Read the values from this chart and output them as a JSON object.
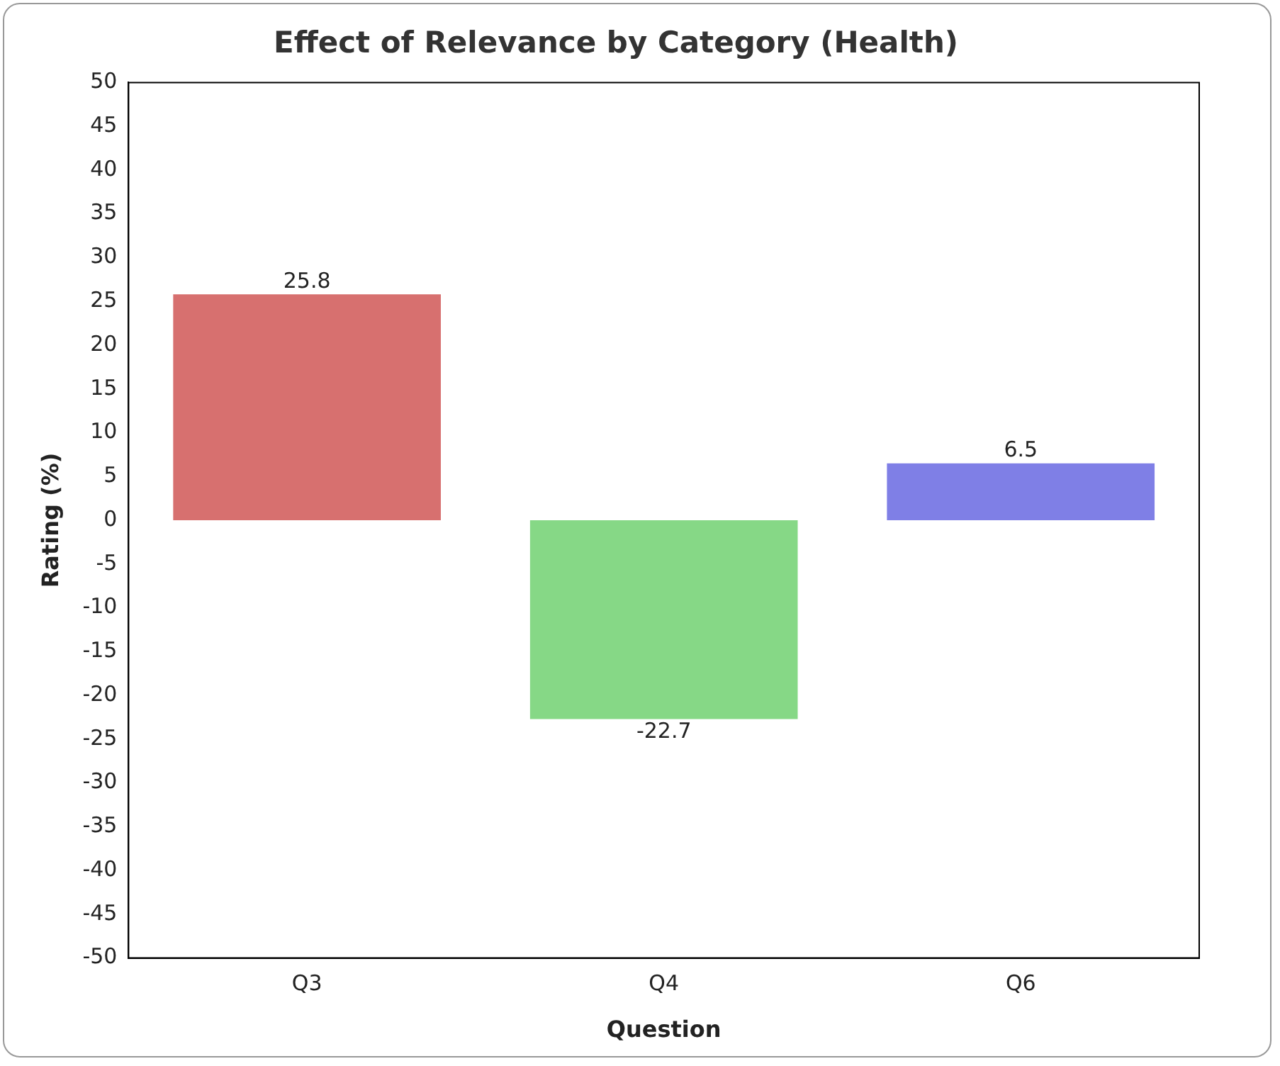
{
  "chart_data": {
    "type": "bar",
    "title": "Effect of Relevance by Category (Health)",
    "xlabel": "Question",
    "ylabel": "Rating (%)",
    "categories": [
      "Q3",
      "Q4",
      "Q6"
    ],
    "values": [
      25.8,
      -22.7,
      6.5
    ],
    "colors": [
      "#d7706f",
      "#86d886",
      "#7f7fe6"
    ],
    "ylim": [
      -50,
      50
    ],
    "yticks": [
      -50,
      -45,
      -40,
      -35,
      -30,
      -25,
      -20,
      -15,
      -10,
      -5,
      0,
      5,
      10,
      15,
      20,
      25,
      30,
      35,
      40,
      45,
      50
    ],
    "grid": false,
    "legend": false,
    "data_labels": true
  }
}
